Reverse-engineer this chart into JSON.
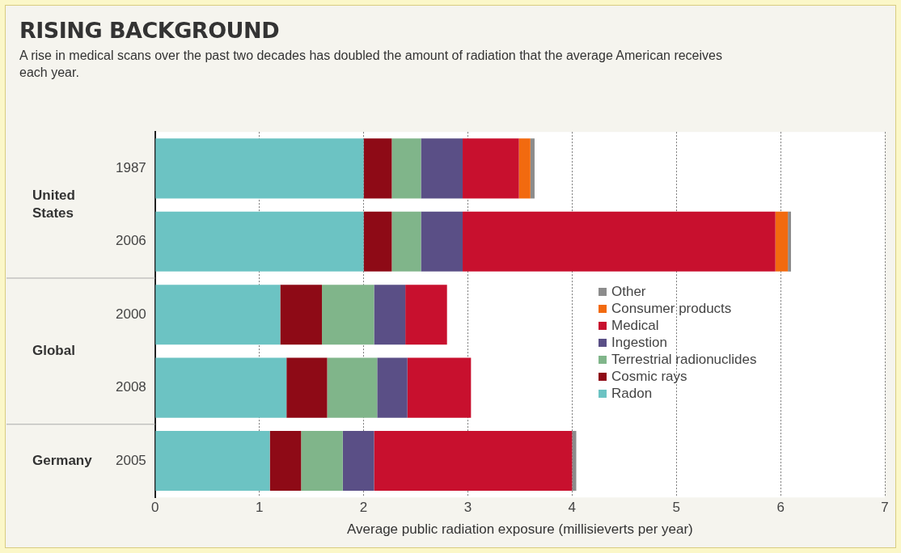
{
  "chart_data": {
    "type": "bar",
    "orientation": "horizontal",
    "stacked": true,
    "title": "RISING BACKGROUND",
    "subtitle": "A rise in medical scans over the past two decades has doubled the amount of radiation that the average American receives each year.",
    "xlabel": "Average public radiation exposure (millisieverts per year)",
    "categories": [
      "1987",
      "2006",
      "2000",
      "2008",
      "2005"
    ],
    "annotations": [
      "United States",
      "Global",
      "Germany"
    ],
    "series": [
      {
        "name": "Radon",
        "color": "#6cc3c3",
        "values": [
          2.0,
          2.0,
          1.2,
          1.26,
          1.1
        ]
      },
      {
        "name": "Cosmic rays",
        "color": "#8e0a16",
        "values": [
          0.27,
          0.27,
          0.4,
          0.39,
          0.3
        ]
      },
      {
        "name": "Terrestrial radionuclides",
        "color": "#80b58a",
        "values": [
          0.28,
          0.28,
          0.5,
          0.48,
          0.4
        ]
      },
      {
        "name": "Ingestion",
        "color": "#5a4f86",
        "values": [
          0.4,
          0.4,
          0.3,
          0.29,
          0.3
        ]
      },
      {
        "name": "Medical",
        "color": "#c8102e",
        "values": [
          0.54,
          3.0,
          0.4,
          0.61,
          1.9
        ]
      },
      {
        "name": "Consumer products",
        "color": "#f26a0f",
        "values": [
          0.11,
          0.12,
          null,
          null,
          null
        ]
      },
      {
        "name": "Other",
        "color": "#8c8c8c",
        "values": [
          0.04,
          0.03,
          null,
          null,
          0.04
        ]
      }
    ],
    "xlim": [
      0,
      7
    ],
    "xticks": [
      0,
      1,
      2,
      3,
      4,
      5,
      6,
      7
    ],
    "grid": "x",
    "legend": "right"
  }
}
